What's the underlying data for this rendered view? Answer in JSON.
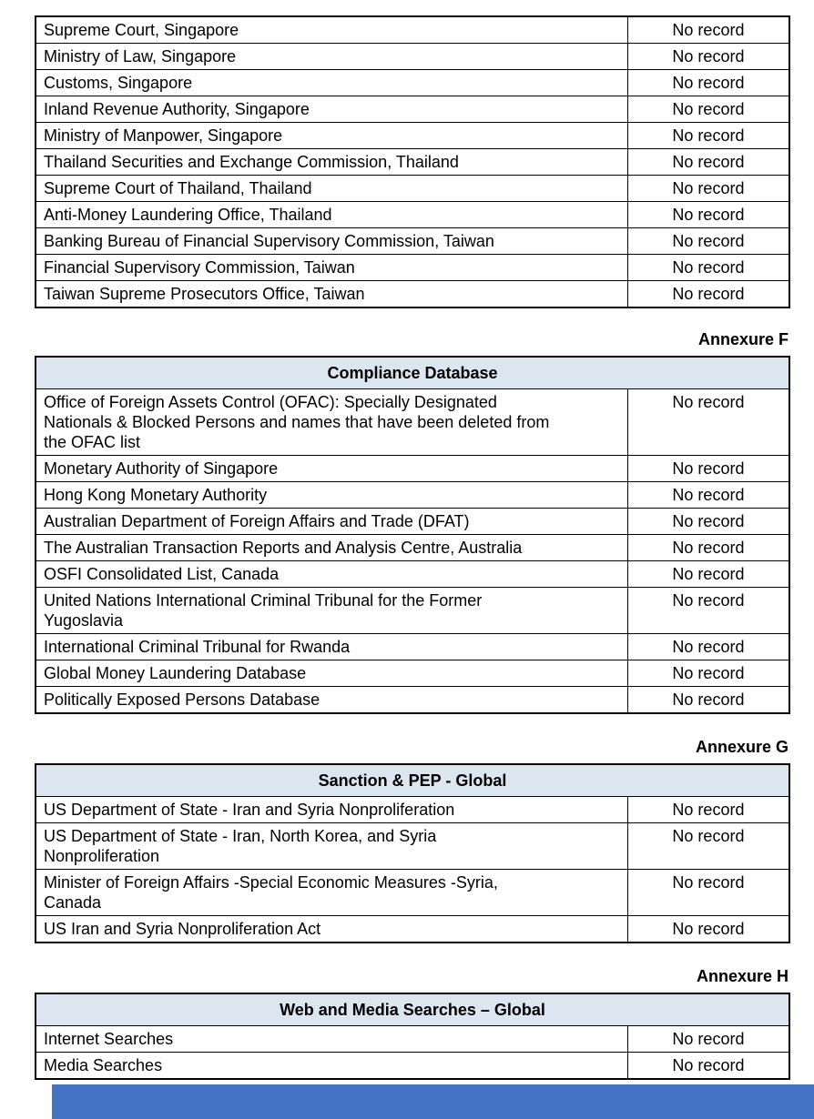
{
  "colors": {
    "table_header_bg": "#dce6f1",
    "table_border": "#000000",
    "footer_bar": "#4472c4",
    "page_bg": "#ffffff",
    "text": "#000000"
  },
  "tables": [
    {
      "annexure": null,
      "title": null,
      "rows": [
        {
          "source": "Supreme Court, Singapore",
          "result": "No record"
        },
        {
          "source": "Ministry of Law, Singapore",
          "result": "No record"
        },
        {
          "source": "Customs, Singapore",
          "result": "No record"
        },
        {
          "source": "Inland Revenue Authority, Singapore",
          "result": "No record"
        },
        {
          "source": "Ministry of Manpower, Singapore",
          "result": "No record"
        },
        {
          "source": "Thailand Securities and Exchange Commission, Thailand",
          "result": "No record"
        },
        {
          "source": "Supreme Court of Thailand, Thailand",
          "result": "No record"
        },
        {
          "source": "Anti-Money Laundering Office, Thailand",
          "result": "No record"
        },
        {
          "source": "Banking Bureau of Financial Supervisory Commission, Taiwan",
          "result": "No record"
        },
        {
          "source": "Financial Supervisory Commission, Taiwan",
          "result": "No record"
        },
        {
          "source": "Taiwan Supreme Prosecutors Office, Taiwan",
          "result": "No record"
        }
      ]
    },
    {
      "annexure": "Annexure F",
      "title": "Compliance Database",
      "rows": [
        {
          "source": "Office of Foreign Assets Control (OFAC): Specially Designated\nNationals & Blocked Persons and names that have been deleted from\nthe OFAC list",
          "result": "No record"
        },
        {
          "source": "Monetary Authority of Singapore",
          "result": "No record"
        },
        {
          "source": "Hong Kong Monetary Authority",
          "result": "No record"
        },
        {
          "source": "Australian Department of Foreign Affairs and Trade (DFAT)",
          "result": "No record"
        },
        {
          "source": "The Australian Transaction Reports and Analysis Centre, Australia",
          "result": "No record"
        },
        {
          "source": "OSFI Consolidated List, Canada",
          "result": "No record"
        },
        {
          "source": "United Nations International Criminal Tribunal for the Former\nYugoslavia",
          "result": "No record"
        },
        {
          "source": "International Criminal Tribunal for Rwanda",
          "result": "No record"
        },
        {
          "source": "Global Money Laundering Database",
          "result": "No record"
        },
        {
          "source": "Politically Exposed Persons Database",
          "result": "No record"
        }
      ]
    },
    {
      "annexure": "Annexure G",
      "title": "Sanction & PEP - Global",
      "rows": [
        {
          "source": "US Department of State - Iran and Syria Nonproliferation",
          "result": "No record"
        },
        {
          "source": "US Department of State - Iran, North Korea, and Syria\nNonproliferation",
          "result": "No record"
        },
        {
          "source": "Minister of Foreign Affairs -Special Economic Measures -Syria,\nCanada",
          "result": "No record"
        },
        {
          "source": "US Iran and Syria Nonproliferation Act",
          "result": "No record"
        }
      ]
    },
    {
      "annexure": "Annexure H",
      "title": "Web and Media Searches – Global",
      "rows": [
        {
          "source": "Internet Searches",
          "result": "No record"
        },
        {
          "source": "Media Searches",
          "result": "No record"
        }
      ]
    }
  ]
}
